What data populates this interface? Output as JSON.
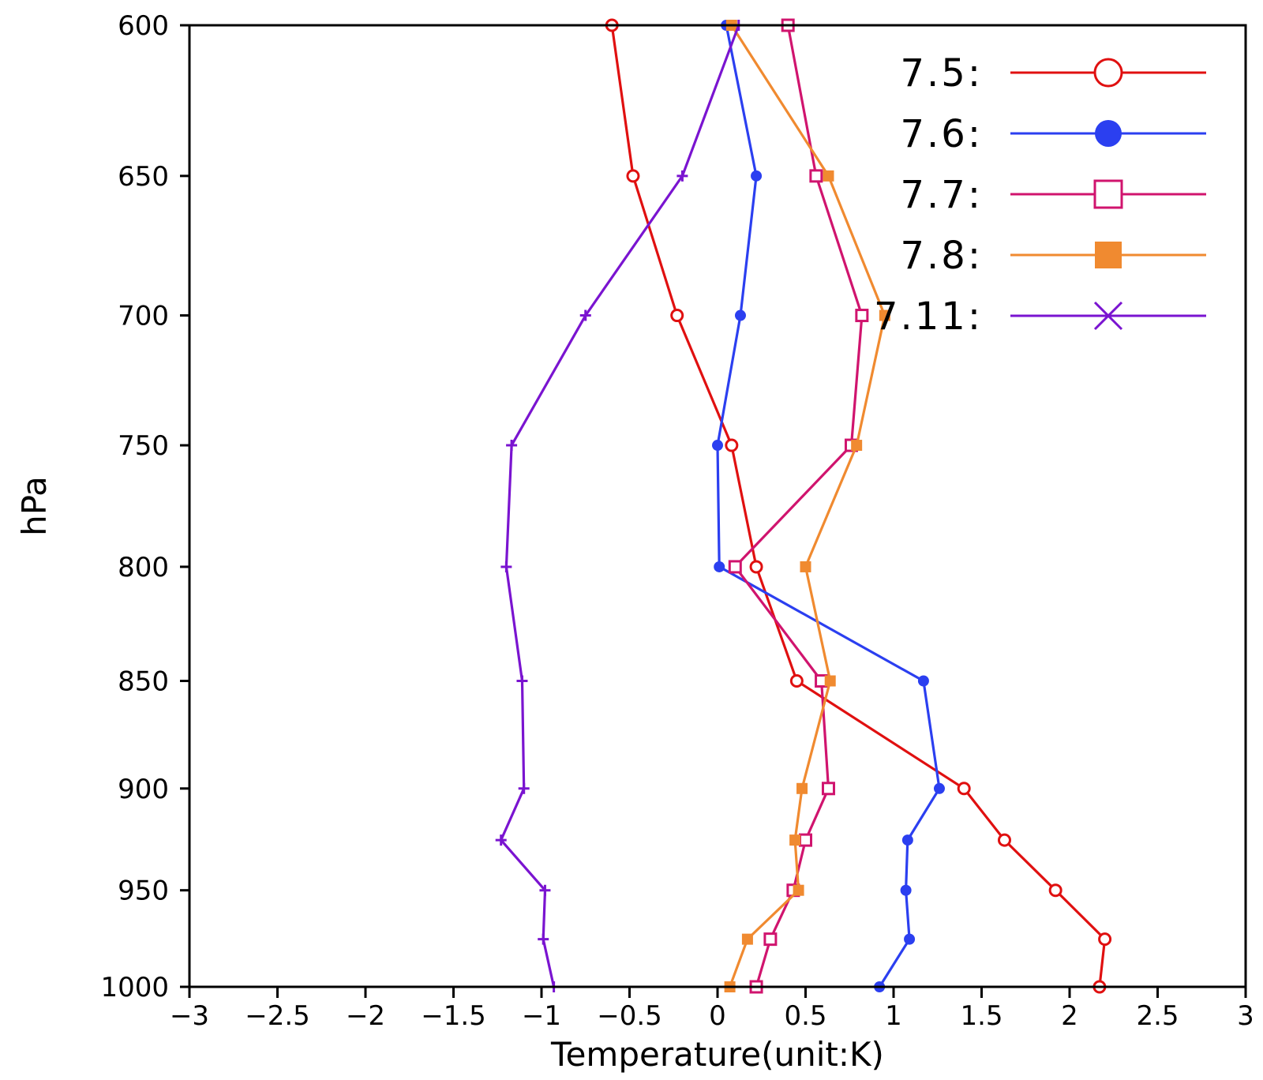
{
  "chart_data": {
    "type": "line",
    "xlabel": "Temperature(unit:K)",
    "ylabel": "hPa",
    "xlim": [
      -3,
      3
    ],
    "ylim": [
      600,
      1000
    ],
    "y_scale": "log-pressure (inverted, 1000 at bottom)",
    "xticks": [
      -3,
      -2.5,
      -2,
      -1.5,
      -1,
      -0.5,
      0,
      0.5,
      1,
      1.5,
      2,
      2.5,
      3
    ],
    "xtick_labels": [
      "−3",
      "−2.5",
      "−2",
      "−1.5",
      "−1",
      "−0.5",
      "0",
      "0.5",
      "1",
      "1.5",
      "2",
      "2.5",
      "3"
    ],
    "yticks": [
      600,
      650,
      700,
      750,
      800,
      850,
      900,
      950,
      1000
    ],
    "ytick_labels": [
      "600",
      "650",
      "700",
      "750",
      "800",
      "850",
      "900",
      "950",
      "1000"
    ],
    "grid": false,
    "legend_position": "top-right",
    "series": [
      {
        "name": "7.5:",
        "color": "#e01010",
        "marker": "open-circle",
        "points": [
          [
            -0.6,
            600
          ],
          [
            -0.48,
            650
          ],
          [
            -0.23,
            700
          ],
          [
            0.08,
            750
          ],
          [
            0.22,
            800
          ],
          [
            0.45,
            850
          ],
          [
            1.4,
            900
          ],
          [
            1.63,
            925
          ],
          [
            1.92,
            950
          ],
          [
            2.2,
            975
          ],
          [
            2.17,
            1000
          ]
        ]
      },
      {
        "name": "7.6:",
        "color": "#2b3ff0",
        "marker": "filled-circle",
        "points": [
          [
            0.05,
            600
          ],
          [
            0.22,
            650
          ],
          [
            0.13,
            700
          ],
          [
            0.0,
            750
          ],
          [
            0.01,
            800
          ],
          [
            1.17,
            850
          ],
          [
            1.26,
            900
          ],
          [
            1.08,
            925
          ],
          [
            1.07,
            950
          ],
          [
            1.09,
            975
          ],
          [
            0.92,
            1000
          ]
        ]
      },
      {
        "name": "7.7:",
        "color": "#d0146e",
        "marker": "open-square",
        "points": [
          [
            0.4,
            600
          ],
          [
            0.56,
            650
          ],
          [
            0.82,
            700
          ],
          [
            0.76,
            750
          ],
          [
            0.1,
            800
          ],
          [
            0.59,
            850
          ],
          [
            0.63,
            900
          ],
          [
            0.5,
            925
          ],
          [
            0.43,
            950
          ],
          [
            0.3,
            975
          ],
          [
            0.22,
            1000
          ]
        ]
      },
      {
        "name": "7.8:",
        "color": "#f08a30",
        "marker": "filled-square",
        "points": [
          [
            0.08,
            600
          ],
          [
            0.63,
            650
          ],
          [
            0.95,
            700
          ],
          [
            0.79,
            750
          ],
          [
            0.5,
            800
          ],
          [
            0.64,
            850
          ],
          [
            0.48,
            900
          ],
          [
            0.44,
            925
          ],
          [
            0.46,
            950
          ],
          [
            0.17,
            975
          ],
          [
            0.07,
            1000
          ]
        ]
      },
      {
        "name": "7.11:",
        "color": "#7a14d0",
        "marker": "cross",
        "points": [
          [
            0.12,
            600
          ],
          [
            -0.2,
            650
          ],
          [
            -0.75,
            700
          ],
          [
            -1.17,
            750
          ],
          [
            -1.2,
            800
          ],
          [
            -1.11,
            850
          ],
          [
            -1.1,
            900
          ],
          [
            -1.23,
            925
          ],
          [
            -0.98,
            950
          ],
          [
            -0.99,
            975
          ],
          [
            -0.93,
            1000
          ]
        ]
      }
    ]
  }
}
